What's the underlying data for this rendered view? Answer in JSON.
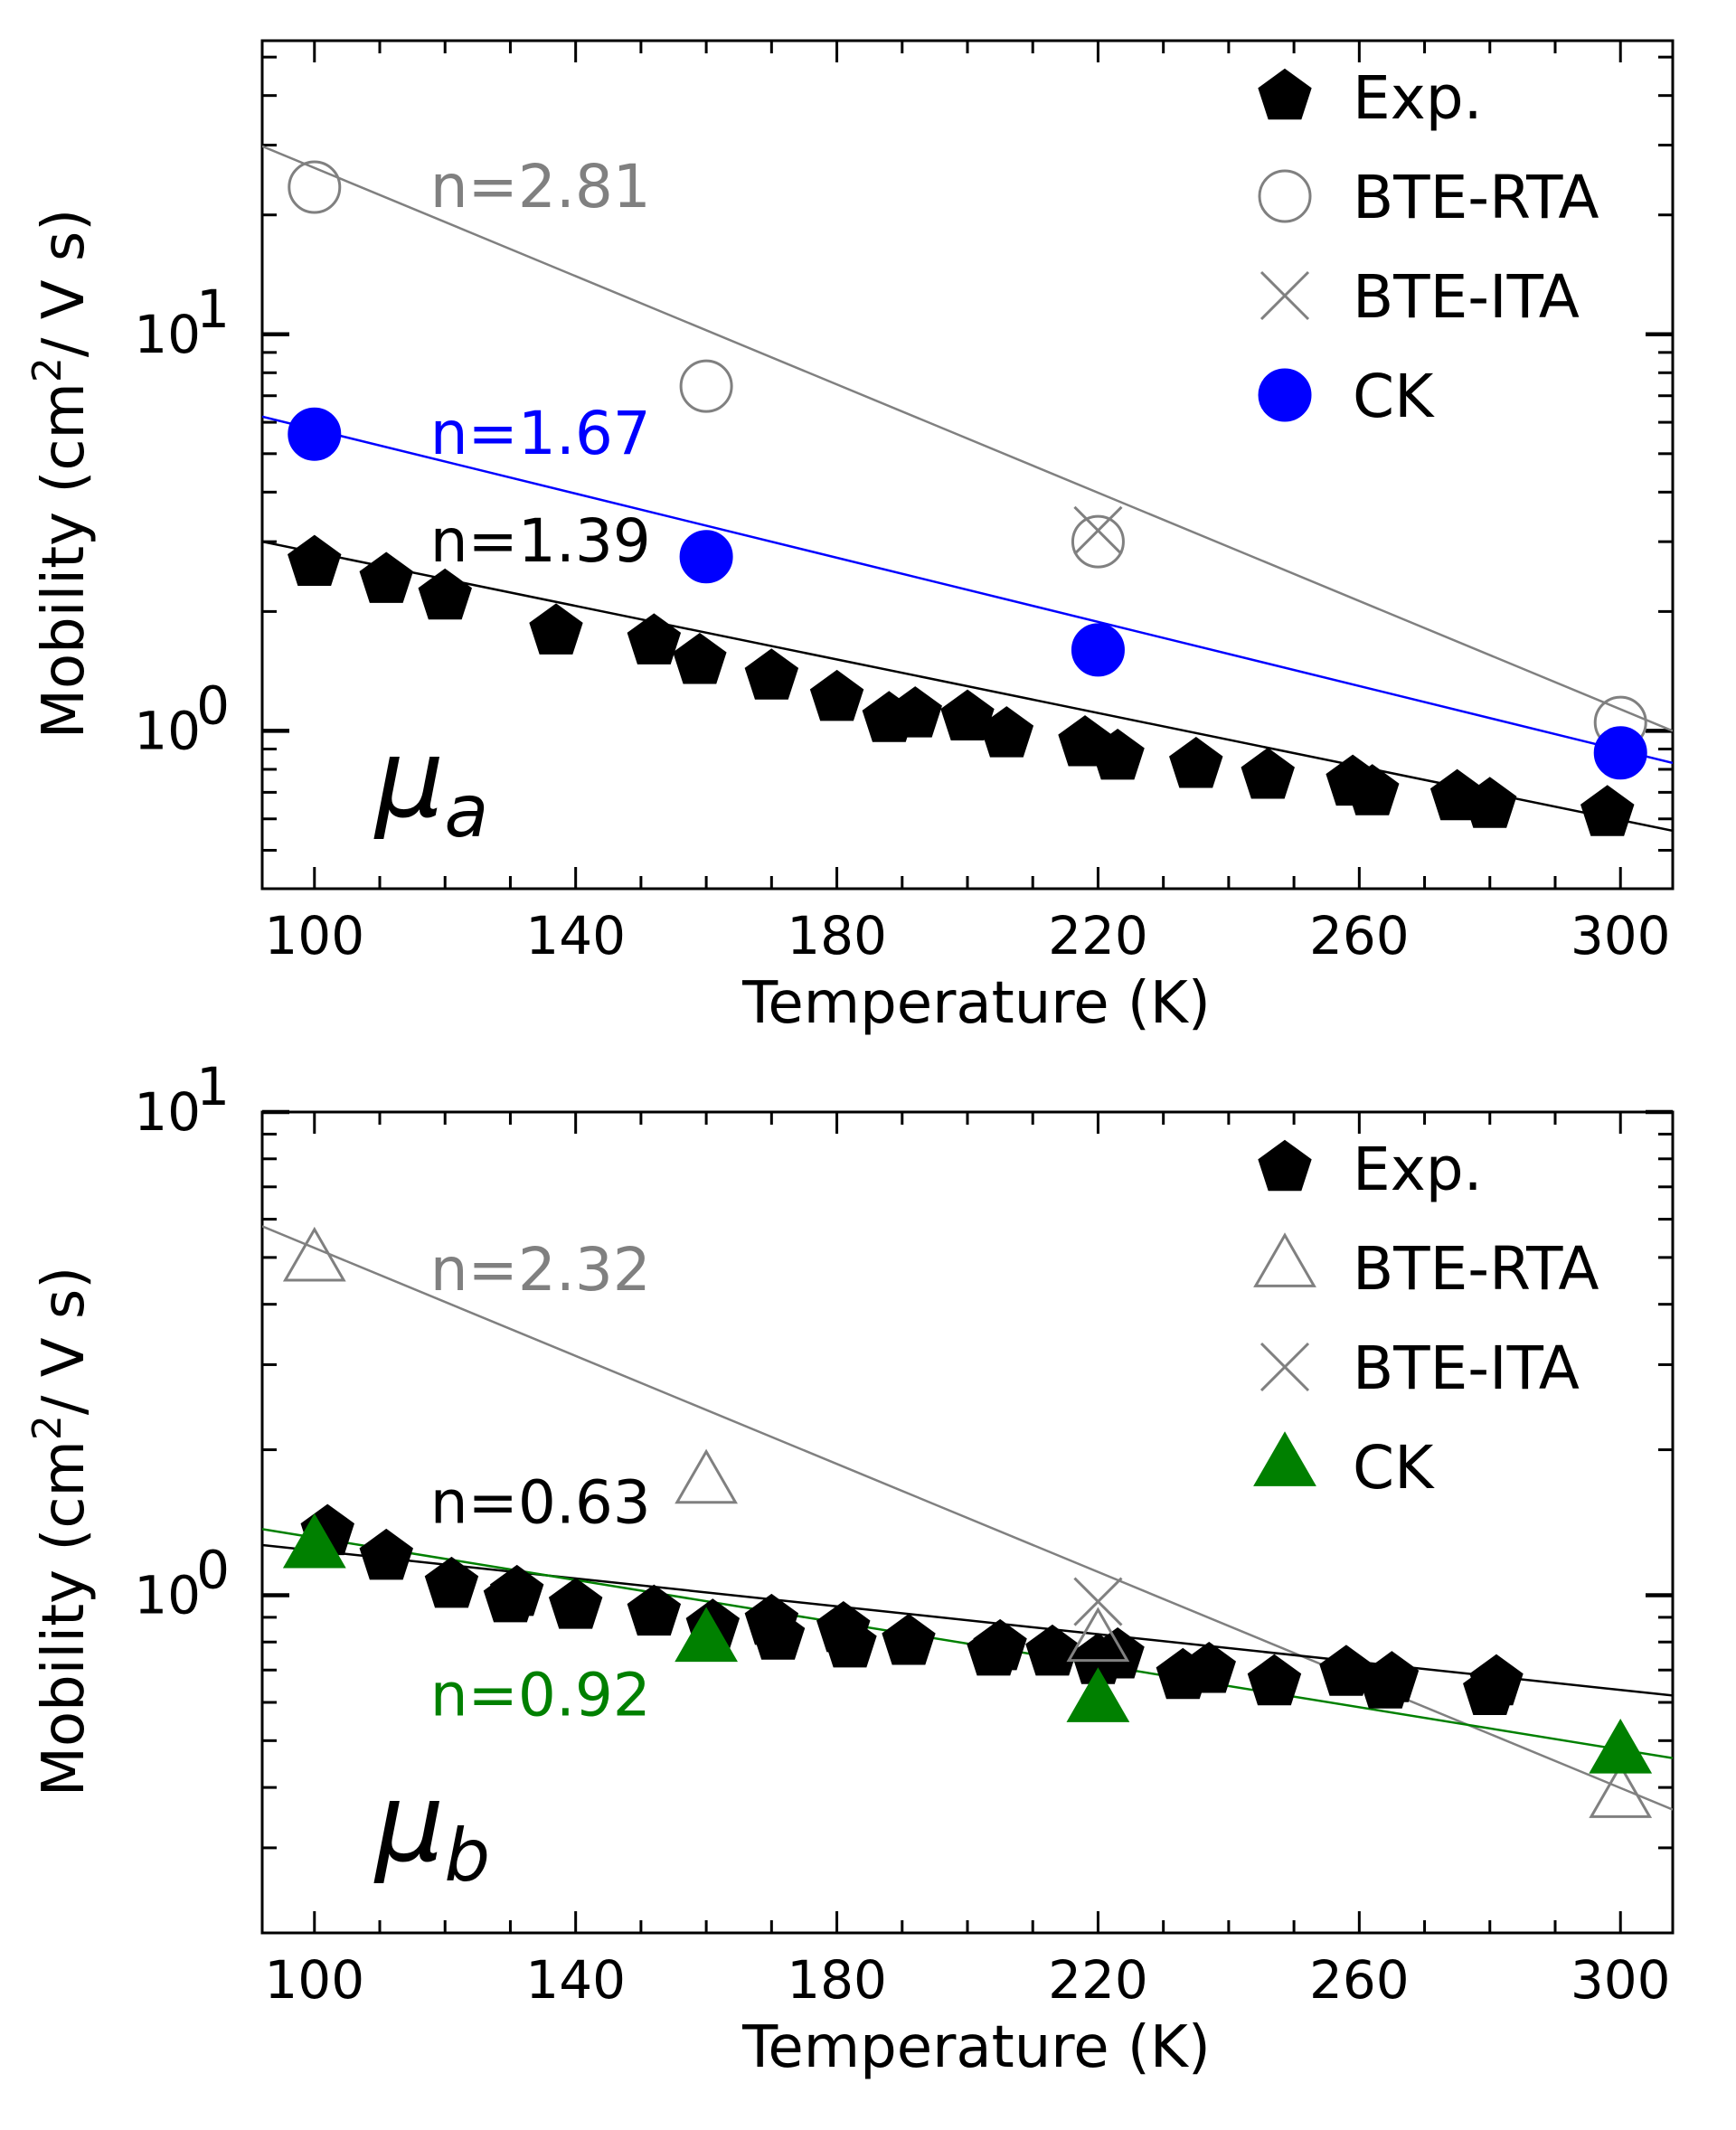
{
  "colors": {
    "exp": "#000000",
    "bte": "#808080",
    "ck_a": "#0000ff",
    "ck_b": "#008000"
  },
  "chart_data": [
    {
      "type": "scatter",
      "panel_label": "μ",
      "panel_subscript": "a",
      "xlabel": "Temperature (K)",
      "ylabel_main": "Mobility (cm",
      "ylabel_sup": "2",
      "ylabel_tail": "/ V s)",
      "yscale": "log",
      "xlim": [
        92,
        308
      ],
      "ylim": [
        0.4,
        55
      ],
      "xticks": [
        100,
        140,
        180,
        220,
        260,
        300
      ],
      "xtick_labels": [
        "100",
        "140",
        "180",
        "220",
        "260",
        "300"
      ],
      "yticks": [
        {
          "value": 1,
          "base": "10",
          "exp": "0"
        },
        {
          "value": 10,
          "base": "10",
          "exp": "1"
        }
      ],
      "series": [
        {
          "name": "Exp.",
          "marker": "pentagon",
          "filled": true,
          "color": "#000000",
          "x": [
            100,
            111,
            120,
            137,
            152,
            159,
            170,
            180,
            188,
            192,
            200,
            206,
            218,
            223,
            235,
            246,
            259,
            262,
            275,
            280,
            298
          ],
          "y": [
            2.65,
            2.4,
            2.18,
            1.78,
            1.68,
            1.5,
            1.37,
            1.21,
            1.07,
            1.1,
            1.08,
            0.98,
            0.93,
            0.86,
            0.82,
            0.77,
            0.74,
            0.7,
            0.68,
            0.65,
            0.62
          ]
        },
        {
          "name": "BTE-RTA",
          "marker": "circle",
          "filled": false,
          "color": "#808080",
          "x": [
            100,
            160,
            220,
            300
          ],
          "y": [
            23.5,
            7.4,
            3.0,
            1.05
          ]
        },
        {
          "name": "BTE-ITA",
          "marker": "x",
          "filled": false,
          "color": "#808080",
          "x": [
            220
          ],
          "y": [
            3.2
          ]
        },
        {
          "name": "CK",
          "marker": "circle",
          "filled": true,
          "color": "#0000ff",
          "x": [
            100,
            160,
            220,
            300
          ],
          "y": [
            5.6,
            2.75,
            1.6,
            0.88
          ]
        }
      ],
      "fit_lines": [
        {
          "color": "#808080",
          "label": "n=2.81",
          "x": [
            92,
            308
          ],
          "y": [
            29.8,
            1.0
          ],
          "label_x": 100,
          "label_y": 23.5
        },
        {
          "color": "#0000ff",
          "label": "n=1.67",
          "x": [
            92,
            308
          ],
          "y": [
            6.2,
            0.83
          ],
          "label_x": 100,
          "label_y": 5.6
        },
        {
          "color": "#000000",
          "label": "n=1.39",
          "x": [
            92,
            308
          ],
          "y": [
            3.0,
            0.56
          ],
          "label_x": 100,
          "label_y": 3.0
        }
      ],
      "legend": [
        "Exp.",
        "BTE-RTA",
        "BTE-ITA",
        "CK"
      ],
      "legend_position": "top-right"
    },
    {
      "type": "scatter",
      "panel_label": "μ",
      "panel_subscript": "b",
      "xlabel": "Temperature (K)",
      "ylabel_main": "Mobility (cm",
      "ylabel_sup": "2",
      "ylabel_tail": "/ V s)",
      "yscale": "log",
      "xlim": [
        92,
        308
      ],
      "ylim": [
        0.2,
        10
      ],
      "xticks": [
        100,
        140,
        180,
        220,
        260,
        300
      ],
      "xtick_labels": [
        "100",
        "140",
        "180",
        "220",
        "260",
        "300"
      ],
      "yticks": [
        {
          "value": 1,
          "base": "10",
          "exp": "0"
        },
        {
          "value": 10,
          "base": "10",
          "exp": "1"
        }
      ],
      "series": [
        {
          "name": "Exp.",
          "marker": "pentagon",
          "filled": true,
          "color": "#000000",
          "x": [
            102,
            111,
            121,
            130,
            131,
            140,
            152,
            161,
            170,
            171,
            181,
            182,
            191,
            204,
            205,
            213,
            220,
            223,
            233,
            237,
            247,
            258,
            264,
            265,
            280,
            281
          ],
          "y": [
            1.35,
            1.2,
            1.05,
            0.98,
            1.01,
            0.95,
            0.92,
            0.86,
            0.88,
            0.82,
            0.85,
            0.79,
            0.8,
            0.76,
            0.78,
            0.76,
            0.73,
            0.75,
            0.68,
            0.7,
            0.66,
            0.69,
            0.65,
            0.67,
            0.63,
            0.66
          ]
        },
        {
          "name": "BTE-RTA",
          "marker": "triangle",
          "filled": false,
          "color": "#808080",
          "x": [
            100,
            160,
            220,
            300
          ],
          "y": [
            4.9,
            1.7,
            0.8,
            0.38
          ]
        },
        {
          "name": "BTE-ITA",
          "marker": "x",
          "filled": false,
          "color": "#808080",
          "x": [
            220
          ],
          "y": [
            0.97
          ]
        },
        {
          "name": "CK",
          "marker": "triangle",
          "filled": true,
          "color": "#008000",
          "x": [
            100,
            160,
            220,
            300
          ],
          "y": [
            1.25,
            0.8,
            0.6,
            0.47
          ]
        }
      ],
      "fit_lines": [
        {
          "color": "#808080",
          "label": "n=2.32",
          "x": [
            92,
            308
          ],
          "y": [
            5.8,
            0.36
          ],
          "label_x": 100,
          "label_y": 4.7
        },
        {
          "color": "#000000",
          "label": "n=0.63",
          "x": [
            92,
            308
          ],
          "y": [
            1.27,
            0.62
          ],
          "label_x": 100,
          "label_y": 1.55
        },
        {
          "color": "#008000",
          "label": "n=0.92",
          "x": [
            92,
            308
          ],
          "y": [
            1.37,
            0.46
          ],
          "label_x": 100,
          "label_y": 0.62
        }
      ],
      "legend": [
        "Exp.",
        "BTE-RTA",
        "BTE-ITA",
        "CK"
      ],
      "legend_position": "top-right"
    }
  ]
}
